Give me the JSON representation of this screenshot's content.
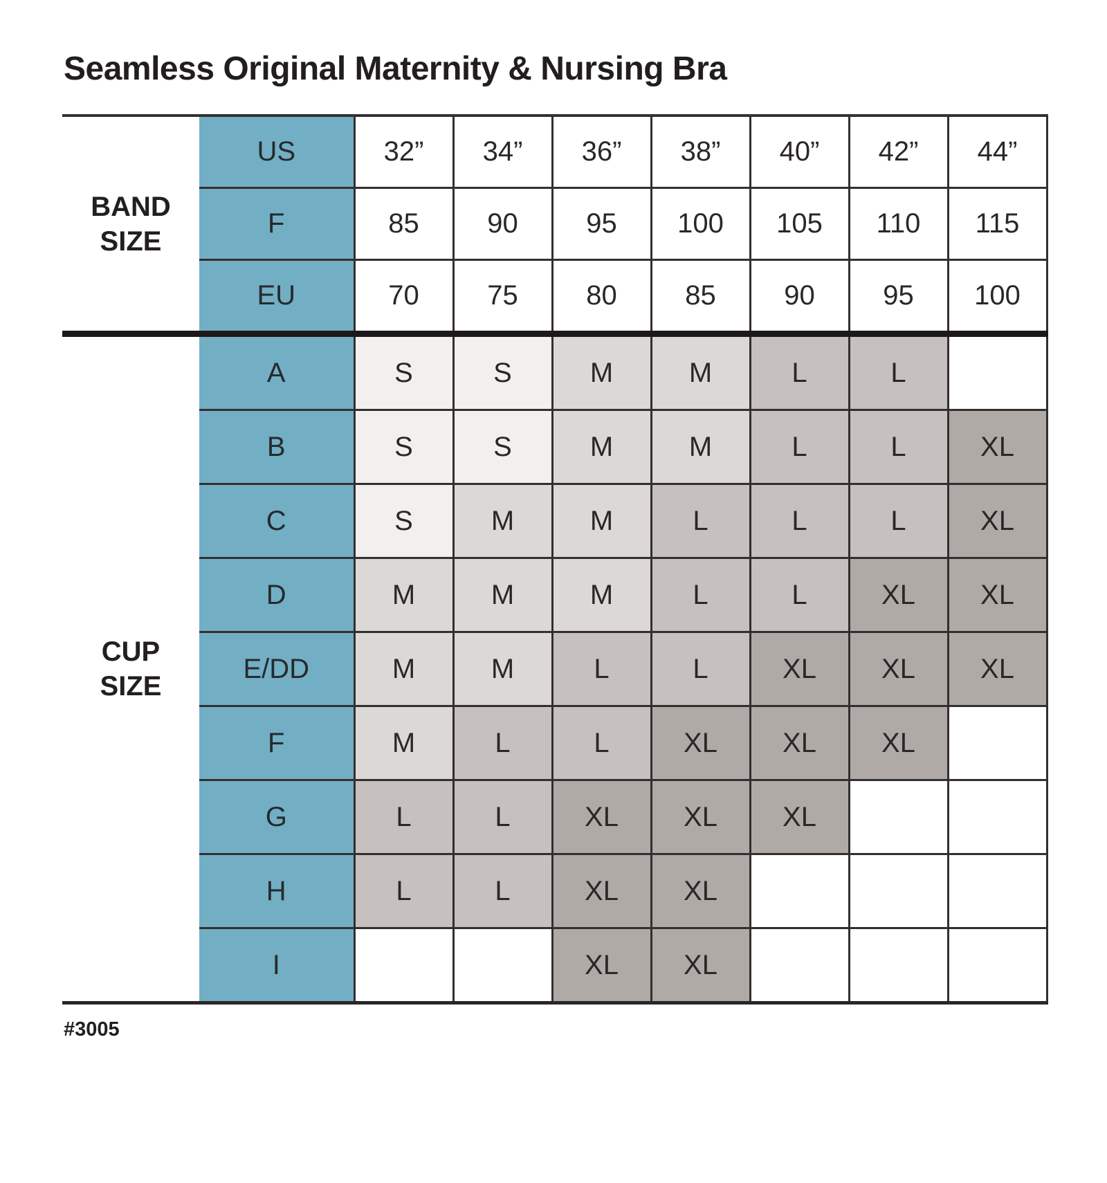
{
  "title": "Seamless Original Maternity & Nursing Bra",
  "footer_code": "#3005",
  "colors": {
    "header_teal": "#72afc4",
    "grid_line": "#332f30",
    "section_divider": "#1d191a",
    "text": "#231f20",
    "size_S": "#f2f0ef",
    "size_M": "#dcd8d6",
    "size_L": "#c6c0be",
    "size_XL": "#b0aaa7"
  },
  "chart_data": {
    "type": "table",
    "title": "Seamless Original Maternity & Nursing Bra",
    "band_section_label": "BAND\nSIZE",
    "cup_section_label": "CUP\nSIZE",
    "band_rows": [
      {
        "label": "US",
        "values": [
          "32”",
          "34”",
          "36”",
          "38”",
          "40”",
          "42”",
          "44”"
        ]
      },
      {
        "label": "F",
        "values": [
          "85",
          "90",
          "95",
          "100",
          "105",
          "110",
          "115"
        ]
      },
      {
        "label": "EU",
        "values": [
          "70",
          "75",
          "80",
          "85",
          "90",
          "95",
          "100"
        ]
      }
    ],
    "cup_rows": [
      {
        "label": "A",
        "values": [
          "S",
          "S",
          "M",
          "M",
          "L",
          "L",
          ""
        ]
      },
      {
        "label": "B",
        "values": [
          "S",
          "S",
          "M",
          "M",
          "L",
          "L",
          "XL"
        ]
      },
      {
        "label": "C",
        "values": [
          "S",
          "M",
          "M",
          "L",
          "L",
          "L",
          "XL"
        ]
      },
      {
        "label": "D",
        "values": [
          "M",
          "M",
          "M",
          "L",
          "L",
          "XL",
          "XL"
        ]
      },
      {
        "label": "E/DD",
        "values": [
          "M",
          "M",
          "L",
          "L",
          "XL",
          "XL",
          "XL"
        ]
      },
      {
        "label": "F",
        "values": [
          "M",
          "L",
          "L",
          "XL",
          "XL",
          "XL",
          ""
        ]
      },
      {
        "label": "G",
        "values": [
          "L",
          "L",
          "XL",
          "XL",
          "XL",
          "",
          ""
        ]
      },
      {
        "label": "H",
        "values": [
          "L",
          "L",
          "XL",
          "XL",
          "",
          "",
          ""
        ]
      },
      {
        "label": "I",
        "values": [
          "",
          "",
          "XL",
          "XL",
          "",
          "",
          ""
        ]
      }
    ],
    "size_shading_legend": {
      "S": "lightest gray",
      "M": "light gray",
      "L": "medium gray",
      "XL": "dark gray"
    }
  }
}
